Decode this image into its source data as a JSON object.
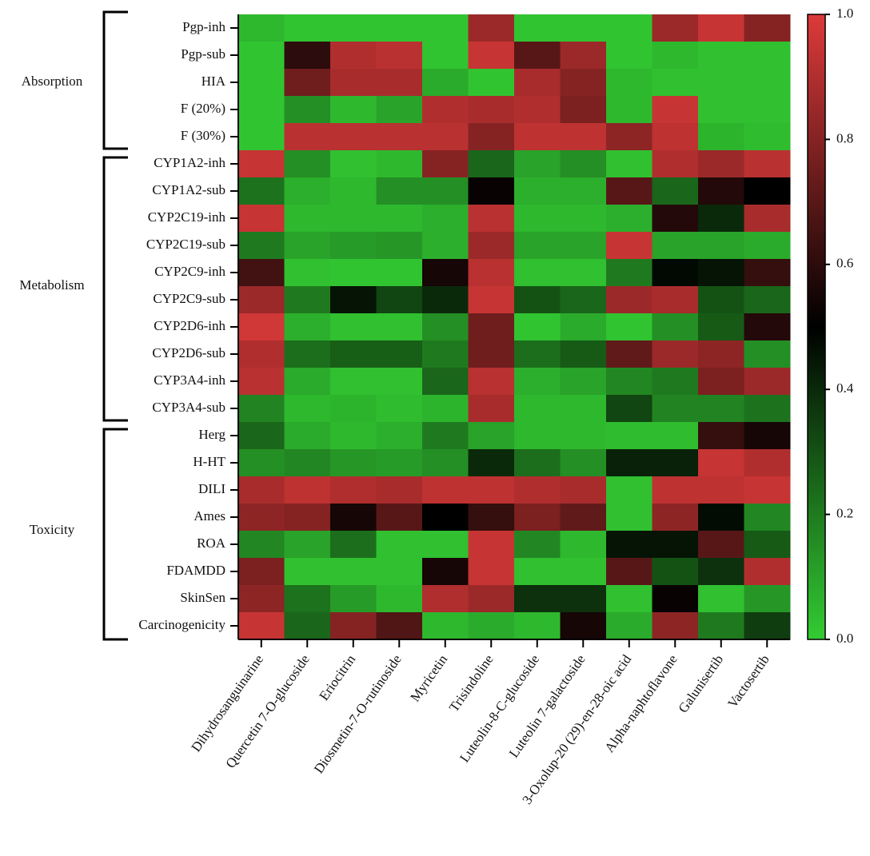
{
  "chart_data": {
    "type": "heatmap",
    "columns": [
      "Dihydrosanguinarine",
      "Quercetin 7-O-glucoside",
      "Eriocitrin",
      "Diosmetin-7-O-rutinoside",
      "Myricetin",
      "Trisindoline",
      "Luteolin-8-C-glucoside",
      "Luteolin 7-galactoside",
      "3-Oxolup-20 (29)-en-28-oic acid",
      "Alpha-naphtoflavone",
      "Galunisertib",
      "Vactosertib"
    ],
    "rows": [
      "Pgp-inh",
      "Pgp-sub",
      "HIA",
      "F (20%)",
      "F (30%)",
      "CYP1A2-inh",
      "CYP1A2-sub",
      "CYP2C19-inh",
      "CYP2C19-sub",
      "CYP2C9-inh",
      "CYP2C9-sub",
      "CYP2D6-inh",
      "CYP2D6-sub",
      "CYP3A4-inh",
      "CYP3A4-sub",
      "Herg",
      "H-HT",
      "DILI",
      "Ames",
      "ROA",
      "FDAMDD",
      "SkinSen",
      "Carcinogenicity"
    ],
    "groups": [
      {
        "label": "Absorption",
        "count": 5
      },
      {
        "label": "Metabolism",
        "count": 10
      },
      {
        "label": "Toxicity",
        "count": 8
      }
    ],
    "values": [
      [
        0.05,
        0.02,
        0.02,
        0.02,
        0.02,
        0.85,
        0.02,
        0.02,
        0.02,
        0.85,
        0.95,
        0.8
      ],
      [
        0.02,
        0.6,
        0.9,
        0.92,
        0.02,
        0.95,
        0.7,
        0.85,
        0.02,
        0.05,
        0.03,
        0.03
      ],
      [
        0.02,
        0.75,
        0.88,
        0.88,
        0.08,
        0.02,
        0.88,
        0.8,
        0.05,
        0.03,
        0.03,
        0.03
      ],
      [
        0.02,
        0.15,
        0.05,
        0.1,
        0.9,
        0.88,
        0.9,
        0.78,
        0.05,
        0.95,
        0.03,
        0.03
      ],
      [
        0.02,
        0.92,
        0.92,
        0.92,
        0.92,
        0.8,
        0.93,
        0.93,
        0.82,
        0.93,
        0.06,
        0.04
      ],
      [
        0.95,
        0.15,
        0.03,
        0.05,
        0.8,
        0.25,
        0.1,
        0.15,
        0.03,
        0.9,
        0.85,
        0.92
      ],
      [
        0.22,
        0.07,
        0.05,
        0.15,
        0.15,
        0.52,
        0.07,
        0.07,
        0.7,
        0.25,
        0.58,
        0.5
      ],
      [
        0.95,
        0.05,
        0.05,
        0.05,
        0.07,
        0.92,
        0.05,
        0.05,
        0.07,
        0.58,
        0.4,
        0.88
      ],
      [
        0.2,
        0.1,
        0.12,
        0.13,
        0.07,
        0.85,
        0.1,
        0.1,
        0.95,
        0.1,
        0.1,
        0.08
      ],
      [
        0.65,
        0.03,
        0.02,
        0.02,
        0.55,
        0.92,
        0.03,
        0.03,
        0.2,
        0.48,
        0.45,
        0.62
      ],
      [
        0.85,
        0.2,
        0.45,
        0.33,
        0.4,
        0.95,
        0.3,
        0.25,
        0.85,
        0.88,
        0.3,
        0.25
      ],
      [
        0.97,
        0.07,
        0.03,
        0.03,
        0.15,
        0.75,
        0.02,
        0.08,
        0.02,
        0.15,
        0.28,
        0.58
      ],
      [
        0.9,
        0.23,
        0.27,
        0.27,
        0.2,
        0.75,
        0.23,
        0.28,
        0.72,
        0.85,
        0.82,
        0.15
      ],
      [
        0.92,
        0.08,
        0.03,
        0.03,
        0.25,
        0.92,
        0.07,
        0.1,
        0.17,
        0.2,
        0.78,
        0.85
      ],
      [
        0.18,
        0.05,
        0.06,
        0.04,
        0.06,
        0.88,
        0.05,
        0.05,
        0.33,
        0.18,
        0.18,
        0.22
      ],
      [
        0.25,
        0.08,
        0.05,
        0.07,
        0.2,
        0.1,
        0.05,
        0.05,
        0.04,
        0.04,
        0.62,
        0.55
      ],
      [
        0.15,
        0.17,
        0.13,
        0.12,
        0.15,
        0.4,
        0.23,
        0.15,
        0.42,
        0.42,
        0.95,
        0.9
      ],
      [
        0.88,
        0.93,
        0.9,
        0.88,
        0.93,
        0.93,
        0.9,
        0.88,
        0.03,
        0.93,
        0.93,
        0.95
      ],
      [
        0.82,
        0.8,
        0.55,
        0.7,
        0.5,
        0.62,
        0.78,
        0.72,
        0.03,
        0.82,
        0.47,
        0.17
      ],
      [
        0.17,
        0.1,
        0.23,
        0.03,
        0.03,
        0.95,
        0.17,
        0.05,
        0.45,
        0.45,
        0.7,
        0.28
      ],
      [
        0.78,
        0.03,
        0.03,
        0.03,
        0.55,
        0.95,
        0.03,
        0.03,
        0.7,
        0.3,
        0.38,
        0.9
      ],
      [
        0.82,
        0.22,
        0.12,
        0.05,
        0.9,
        0.85,
        0.38,
        0.38,
        0.03,
        0.52,
        0.03,
        0.13
      ],
      [
        0.95,
        0.25,
        0.8,
        0.68,
        0.05,
        0.08,
        0.05,
        0.55,
        0.08,
        0.82,
        0.2,
        0.35
      ]
    ],
    "colormap": [
      "#33cc33",
      "#000000",
      "#dd3a3a"
    ],
    "clim": [
      0,
      1
    ],
    "cticks": [
      {
        "value": 0,
        "label": "0.0"
      },
      {
        "value": 0.2,
        "label": "0.2"
      },
      {
        "value": 0.4,
        "label": "0.4"
      },
      {
        "value": 0.6,
        "label": "0.6"
      },
      {
        "value": 0.8,
        "label": "0.8"
      },
      {
        "value": 1,
        "label": "1.0"
      }
    ]
  }
}
